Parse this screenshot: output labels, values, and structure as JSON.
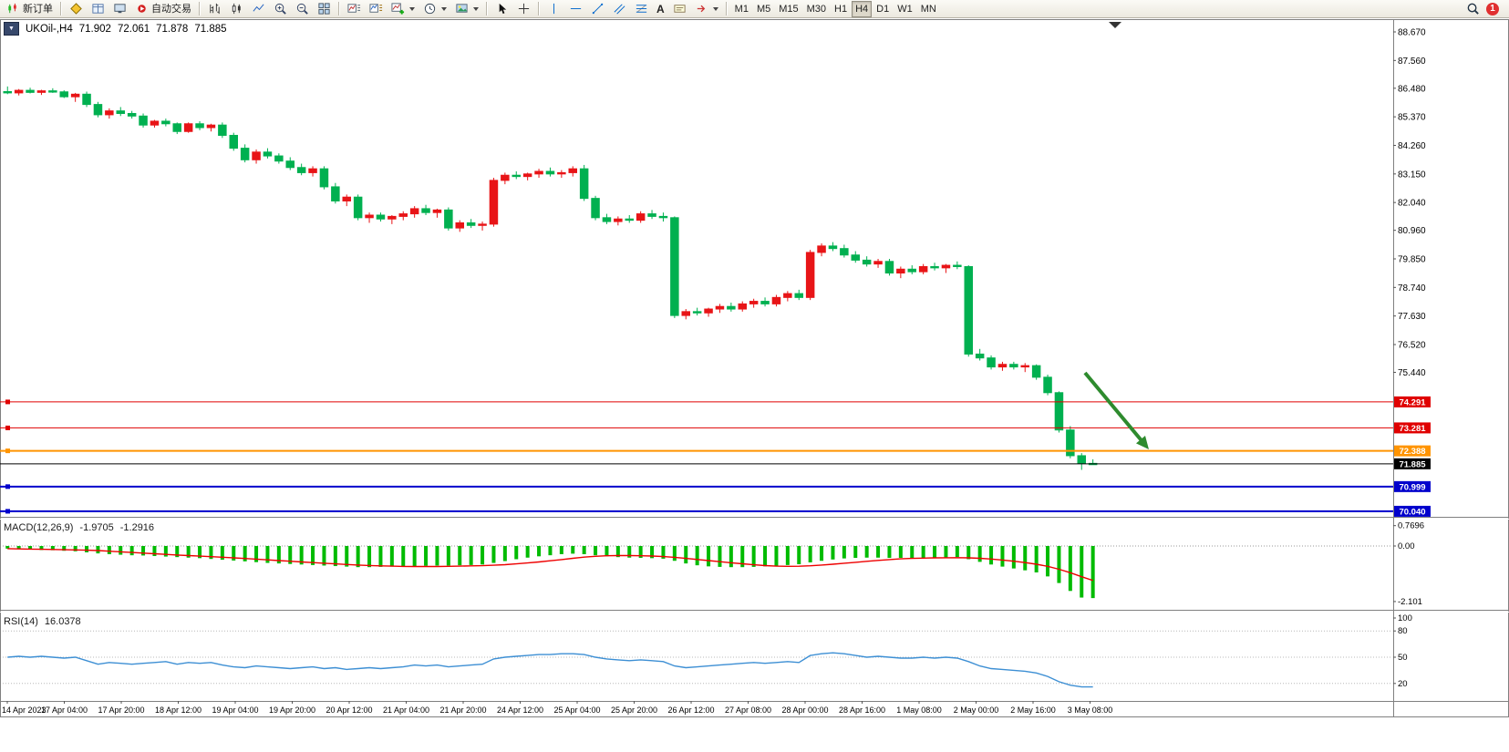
{
  "toolbar": {
    "new_order_label": "新订单",
    "auto_trading_label": "自动交易",
    "text_tool_label": "A",
    "timeframes": [
      "M1",
      "M5",
      "M15",
      "M30",
      "H1",
      "H4",
      "D1",
      "W1",
      "MN"
    ],
    "active_timeframe": "H4",
    "notification_badge": "1"
  },
  "chart": {
    "symbol_title": "UKOil-,H4",
    "one_click_arrow": "▼",
    "open": "71.902",
    "high": "72.061",
    "low": "71.878",
    "close": "71.885"
  },
  "price_axis": {
    "ticks": [
      "88.670",
      "87.560",
      "86.480",
      "85.370",
      "84.260",
      "83.150",
      "82.040",
      "80.960",
      "79.850",
      "78.740",
      "77.630",
      "76.520",
      "75.440"
    ],
    "tags": [
      {
        "label": "74.291",
        "price": 74.291,
        "color": "#e00000",
        "width": 1,
        "type": "hline"
      },
      {
        "label": "73.281",
        "price": 73.281,
        "color": "#e00000",
        "width": 1,
        "type": "hline"
      },
      {
        "label": "72.388",
        "price": 72.388,
        "color": "#ff9400",
        "width": 2,
        "type": "hline"
      },
      {
        "label": "71.885",
        "price": 71.885,
        "color": "#000000",
        "width": 1,
        "type": "current"
      },
      {
        "label": "70.999",
        "price": 70.999,
        "color": "#0000cc",
        "width": 2,
        "type": "hline"
      },
      {
        "label": "70.040",
        "price": 70.04,
        "color": "#0000cc",
        "width": 2,
        "type": "hline"
      }
    ]
  },
  "time_axis": {
    "labels": [
      "14 Apr 2023",
      "17 Apr 04:00",
      "17 Apr 20:00",
      "18 Apr 12:00",
      "19 Apr 04:00",
      "19 Apr 20:00",
      "20 Apr 12:00",
      "21 Apr 04:00",
      "21 Apr 20:00",
      "24 Apr 12:00",
      "25 Apr 04:00",
      "25 Apr 20:00",
      "26 Apr 12:00",
      "27 Apr 08:00",
      "28 Apr 00:00",
      "28 Apr 16:00",
      "1 May 08:00",
      "2 May 00:00",
      "2 May 16:00",
      "3 May 08:00"
    ]
  },
  "indicators": {
    "macd": {
      "name": "MACD(12,26,9)",
      "value_main": "-1.9705",
      "value_signal": "-1.2916",
      "scale": [
        "0.7696",
        "0.00",
        "-2.101"
      ]
    },
    "rsi": {
      "name": "RSI(14)",
      "value": "16.0378",
      "scale": [
        "100",
        "80",
        "50",
        "20"
      ],
      "levels": [
        80,
        50,
        20
      ]
    }
  },
  "colors": {
    "candle_up": "#e81417",
    "candle_down": "#00b050",
    "macd_hist": "#00bb00",
    "macd_signal": "#ee0000",
    "rsi_line": "#3d8fd4",
    "arrow": "#2e8b2e"
  },
  "chart_data": [
    {
      "type": "candlestick",
      "symbol": "UKOil-",
      "timeframe": "H4",
      "ohlc_current": {
        "open": 71.902,
        "high": 72.061,
        "low": 71.878,
        "close": 71.885
      },
      "ylim": [
        69.6,
        89.2
      ],
      "candles": [
        [
          86.35,
          86.55,
          86.25,
          86.3
        ],
        [
          86.3,
          86.45,
          86.2,
          86.4
        ],
        [
          86.4,
          86.5,
          86.28,
          86.32
        ],
        [
          86.32,
          86.42,
          86.22,
          86.38
        ],
        [
          86.38,
          86.48,
          86.3,
          86.34
        ],
        [
          86.34,
          86.4,
          86.1,
          86.15
        ],
        [
          86.15,
          86.3,
          85.95,
          86.25
        ],
        [
          86.25,
          86.35,
          85.75,
          85.85
        ],
        [
          85.85,
          85.95,
          85.35,
          85.45
        ],
        [
          85.45,
          85.7,
          85.3,
          85.6
        ],
        [
          85.6,
          85.75,
          85.4,
          85.5
        ],
        [
          85.5,
          85.6,
          85.3,
          85.4
        ],
        [
          85.4,
          85.5,
          84.95,
          85.05
        ],
        [
          85.05,
          85.25,
          84.95,
          85.2
        ],
        [
          85.2,
          85.3,
          85.0,
          85.1
        ],
        [
          85.1,
          85.15,
          84.7,
          84.8
        ],
        [
          84.8,
          85.15,
          84.75,
          85.1
        ],
        [
          85.1,
          85.2,
          84.85,
          84.95
        ],
        [
          84.95,
          85.1,
          84.8,
          85.05
        ],
        [
          85.05,
          85.15,
          84.55,
          84.65
        ],
        [
          84.65,
          84.75,
          84.05,
          84.15
        ],
        [
          84.15,
          84.3,
          83.6,
          83.7
        ],
        [
          83.7,
          84.1,
          83.55,
          84.0
        ],
        [
          84.0,
          84.15,
          83.75,
          83.85
        ],
        [
          83.85,
          83.95,
          83.55,
          83.65
        ],
        [
          83.65,
          83.8,
          83.3,
          83.4
        ],
        [
          83.4,
          83.55,
          83.1,
          83.2
        ],
        [
          83.2,
          83.45,
          83.05,
          83.35
        ],
        [
          83.35,
          83.45,
          82.55,
          82.65
        ],
        [
          82.65,
          82.8,
          82.0,
          82.1
        ],
        [
          82.1,
          82.35,
          81.9,
          82.25
        ],
        [
          82.25,
          82.35,
          81.35,
          81.45
        ],
        [
          81.45,
          81.65,
          81.25,
          81.55
        ],
        [
          81.55,
          81.65,
          81.3,
          81.4
        ],
        [
          81.4,
          81.55,
          81.2,
          81.5
        ],
        [
          81.5,
          81.7,
          81.35,
          81.6
        ],
        [
          81.6,
          81.9,
          81.45,
          81.8
        ],
        [
          81.8,
          81.95,
          81.55,
          81.65
        ],
        [
          81.65,
          81.8,
          81.45,
          81.75
        ],
        [
          81.75,
          81.85,
          80.95,
          81.05
        ],
        [
          81.05,
          81.35,
          80.9,
          81.25
        ],
        [
          81.25,
          81.4,
          81.05,
          81.15
        ],
        [
          81.15,
          81.3,
          80.95,
          81.2
        ],
        [
          81.2,
          83.0,
          81.1,
          82.9
        ],
        [
          82.9,
          83.2,
          82.75,
          83.1
        ],
        [
          83.1,
          83.25,
          82.95,
          83.05
        ],
        [
          83.05,
          83.2,
          82.9,
          83.15
        ],
        [
          83.15,
          83.35,
          83.0,
          83.25
        ],
        [
          83.25,
          83.4,
          83.05,
          83.15
        ],
        [
          83.15,
          83.3,
          83.0,
          83.2
        ],
        [
          83.2,
          83.45,
          83.05,
          83.35
        ],
        [
          83.35,
          83.5,
          82.1,
          82.2
        ],
        [
          82.2,
          82.3,
          81.35,
          81.45
        ],
        [
          81.45,
          81.6,
          81.2,
          81.3
        ],
        [
          81.3,
          81.5,
          81.15,
          81.4
        ],
        [
          81.4,
          81.55,
          81.25,
          81.35
        ],
        [
          81.35,
          81.7,
          81.25,
          81.6
        ],
        [
          81.6,
          81.75,
          81.4,
          81.5
        ],
        [
          81.5,
          81.65,
          81.3,
          81.45
        ],
        [
          81.45,
          81.5,
          77.55,
          77.65
        ],
        [
          77.65,
          77.9,
          77.5,
          77.8
        ],
        [
          77.8,
          77.95,
          77.65,
          77.75
        ],
        [
          77.75,
          77.95,
          77.6,
          77.9
        ],
        [
          77.9,
          78.1,
          77.75,
          78.0
        ],
        [
          78.0,
          78.15,
          77.8,
          77.9
        ],
        [
          77.9,
          78.2,
          77.8,
          78.1
        ],
        [
          78.1,
          78.3,
          77.95,
          78.2
        ],
        [
          78.2,
          78.35,
          78.0,
          78.1
        ],
        [
          78.1,
          78.45,
          78.0,
          78.35
        ],
        [
          78.35,
          78.6,
          78.2,
          78.5
        ],
        [
          78.5,
          78.65,
          78.25,
          78.35
        ],
        [
          78.35,
          80.2,
          78.25,
          80.1
        ],
        [
          80.1,
          80.45,
          79.95,
          80.35
        ],
        [
          80.35,
          80.5,
          80.15,
          80.25
        ],
        [
          80.25,
          80.4,
          79.9,
          80.0
        ],
        [
          80.0,
          80.15,
          79.7,
          79.8
        ],
        [
          79.8,
          79.95,
          79.55,
          79.65
        ],
        [
          79.65,
          79.85,
          79.5,
          79.75
        ],
        [
          79.75,
          79.85,
          79.2,
          79.3
        ],
        [
          79.3,
          79.55,
          79.1,
          79.45
        ],
        [
          79.45,
          79.6,
          79.25,
          79.35
        ],
        [
          79.35,
          79.65,
          79.25,
          79.55
        ],
        [
          79.55,
          79.7,
          79.4,
          79.5
        ],
        [
          79.5,
          79.65,
          79.3,
          79.6
        ],
        [
          79.6,
          79.75,
          79.45,
          79.55
        ],
        [
          79.55,
          79.6,
          76.05,
          76.15
        ],
        [
          76.15,
          76.35,
          75.9,
          76.0
        ],
        [
          76.0,
          76.1,
          75.55,
          75.65
        ],
        [
          75.65,
          75.85,
          75.5,
          75.75
        ],
        [
          75.75,
          75.85,
          75.55,
          75.65
        ],
        [
          75.65,
          75.8,
          75.45,
          75.7
        ],
        [
          75.7,
          75.75,
          75.15,
          75.25
        ],
        [
          75.25,
          75.35,
          74.55,
          74.65
        ],
        [
          74.65,
          74.7,
          73.1,
          73.2
        ],
        [
          73.2,
          73.35,
          72.1,
          72.2
        ],
        [
          72.2,
          72.3,
          71.65,
          71.9
        ],
        [
          71.902,
          72.061,
          71.878,
          71.885
        ]
      ]
    },
    {
      "type": "bar",
      "name": "MACD(12,26,9)",
      "ylim": [
        -2.101,
        0.7696
      ],
      "values": [
        -0.1,
        -0.12,
        -0.13,
        -0.15,
        -0.16,
        -0.18,
        -0.2,
        -0.24,
        -0.28,
        -0.31,
        -0.33,
        -0.35,
        -0.36,
        -0.38,
        -0.4,
        -0.42,
        -0.44,
        -0.46,
        -0.49,
        -0.52,
        -0.55,
        -0.58,
        -0.61,
        -0.64,
        -0.66,
        -0.68,
        -0.7,
        -0.72,
        -0.74,
        -0.76,
        -0.78,
        -0.8,
        -0.8,
        -0.79,
        -0.78,
        -0.77,
        -0.76,
        -0.75,
        -0.74,
        -0.74,
        -0.73,
        -0.72,
        -0.7,
        -0.64,
        -0.57,
        -0.5,
        -0.44,
        -0.39,
        -0.35,
        -0.31,
        -0.29,
        -0.31,
        -0.35,
        -0.39,
        -0.42,
        -0.44,
        -0.45,
        -0.46,
        -0.48,
        -0.56,
        -0.66,
        -0.73,
        -0.77,
        -0.79,
        -0.8,
        -0.8,
        -0.79,
        -0.77,
        -0.75,
        -0.72,
        -0.69,
        -0.62,
        -0.56,
        -0.51,
        -0.47,
        -0.45,
        -0.44,
        -0.44,
        -0.45,
        -0.45,
        -0.46,
        -0.45,
        -0.44,
        -0.43,
        -0.42,
        -0.5,
        -0.6,
        -0.7,
        -0.78,
        -0.85,
        -0.92,
        -1.0,
        -1.15,
        -1.4,
        -1.7,
        -1.95,
        -1.97
      ]
    },
    {
      "type": "line",
      "name": "RSI(14)",
      "ylim": [
        0,
        100
      ],
      "values": [
        50,
        51,
        50,
        51,
        50,
        49,
        50,
        46,
        42,
        44,
        43,
        42,
        43,
        44,
        45,
        42,
        44,
        43,
        44,
        41,
        39,
        38,
        40,
        39,
        38,
        37,
        38,
        39,
        37,
        38,
        36,
        37,
        38,
        37,
        38,
        39,
        41,
        40,
        41,
        39,
        40,
        41,
        42,
        48,
        50,
        51,
        52,
        53,
        53,
        54,
        54,
        53,
        50,
        48,
        47,
        46,
        47,
        46,
        45,
        40,
        38,
        39,
        40,
        41,
        42,
        43,
        44,
        43,
        44,
        45,
        44,
        52,
        54,
        55,
        54,
        52,
        50,
        51,
        50,
        49,
        49,
        50,
        49,
        50,
        49,
        45,
        40,
        37,
        36,
        35,
        34,
        32,
        28,
        22,
        18,
        16,
        16.04
      ]
    }
  ]
}
